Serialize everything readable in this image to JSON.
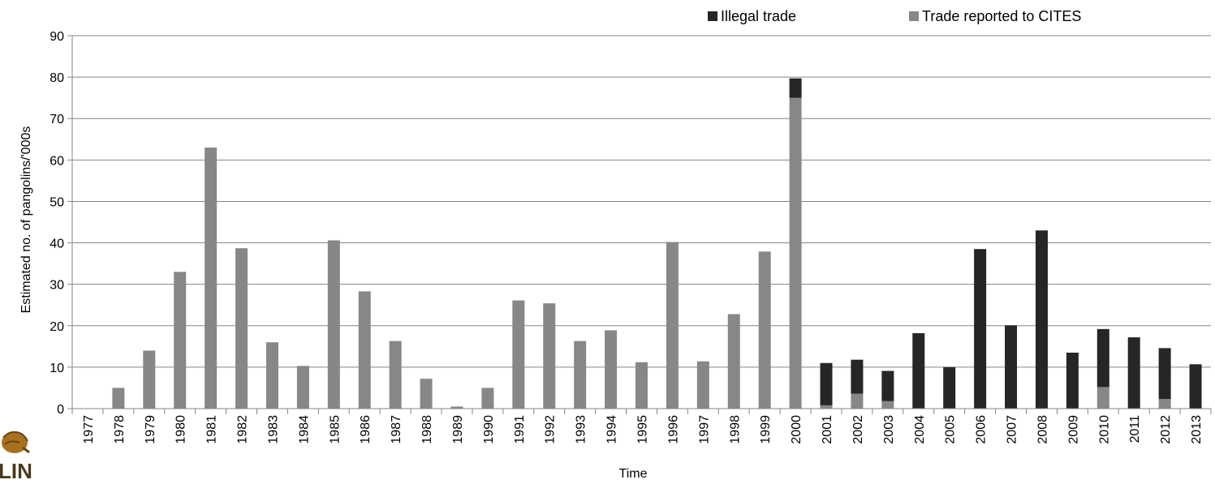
{
  "chart_data": {
    "type": "bar",
    "stacked": true,
    "xlabel": "Time",
    "ylabel": "Estimated no. of pangolins/'000s",
    "ylim": [
      0,
      90
    ],
    "yticks": [
      0,
      10,
      20,
      30,
      40,
      50,
      60,
      70,
      80,
      90
    ],
    "grid": true,
    "legend_position": "top-right",
    "categories": [
      "1977",
      "1978",
      "1979",
      "1980",
      "1981",
      "1982",
      "1983",
      "1984",
      "1985",
      "1986",
      "1987",
      "1988",
      "1989",
      "1990",
      "1991",
      "1992",
      "1993",
      "1994",
      "1995",
      "1996",
      "1997",
      "1998",
      "1999",
      "2000",
      "2001",
      "2002",
      "2003",
      "2004",
      "2005",
      "2006",
      "2007",
      "2008",
      "2009",
      "2010",
      "2011",
      "2012",
      "2013"
    ],
    "series": [
      {
        "name": "Trade reported to CITES",
        "color": "#878787",
        "values": [
          0,
          5,
          14,
          33,
          63,
          38.7,
          16,
          10.3,
          40.6,
          28.3,
          16.3,
          7.2,
          0.5,
          5,
          26.1,
          25.4,
          16.3,
          18.9,
          11.2,
          40.2,
          11.4,
          22.8,
          37.9,
          75,
          0.8,
          3.6,
          1.8,
          0,
          0,
          0,
          0,
          0,
          0,
          5.2,
          0,
          2.3,
          0
        ]
      },
      {
        "name": "Illegal trade",
        "color": "#262626",
        "values": [
          0,
          0,
          0,
          0,
          0,
          0,
          0,
          0,
          0,
          0,
          0,
          0,
          0,
          0,
          0,
          0,
          0,
          0,
          0,
          0,
          0,
          0,
          0,
          4.7,
          10.2,
          8.2,
          7.3,
          18.2,
          10,
          38.5,
          20.1,
          43,
          13.5,
          14,
          17.2,
          12.3,
          10.7
        ]
      }
    ],
    "legend_order": [
      "Illegal trade",
      "Trade reported to CITES"
    ]
  },
  "logo": {
    "text": "LIN",
    "icon": "pangolin-icon"
  }
}
